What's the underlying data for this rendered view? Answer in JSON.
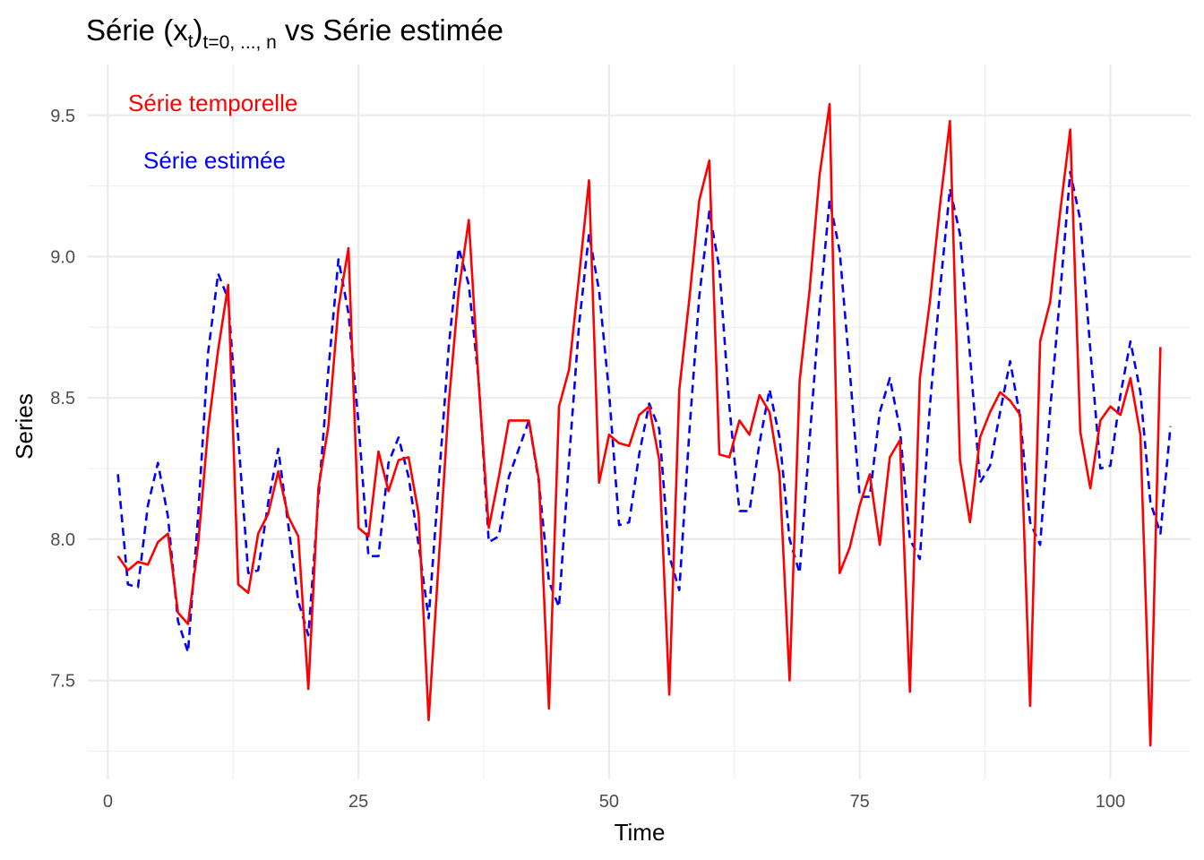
{
  "chart_data": {
    "type": "line",
    "title": {
      "prefix": "Série (x",
      "sub": "t",
      "close": ")",
      "subscript": "t=0, ..., n",
      "suffix": " vs Série estimée"
    },
    "xlabel": "Time",
    "ylabel": "Series",
    "xlim": [
      -2,
      108
    ],
    "ylim": [
      7.15,
      9.68
    ],
    "x_ticks": [
      0,
      25,
      50,
      75,
      100
    ],
    "y_ticks": [
      7.5,
      8.0,
      8.5,
      9.0,
      9.5
    ],
    "y_tick_labels": [
      "7.5",
      "8.0",
      "8.5",
      "9.0",
      "9.5"
    ],
    "grid": true,
    "legend_position": "top-left",
    "series": [
      {
        "name": "Série temporelle",
        "color": "#ff0000",
        "line_style": "solid",
        "x_start": 1,
        "values": [
          7.94,
          7.89,
          7.92,
          7.91,
          7.99,
          8.02,
          7.74,
          7.7,
          7.98,
          8.39,
          8.67,
          8.9,
          7.84,
          7.81,
          8.02,
          8.09,
          8.24,
          8.08,
          8.01,
          7.47,
          8.18,
          8.4,
          8.82,
          9.03,
          8.04,
          8.01,
          8.31,
          8.17,
          8.28,
          8.29,
          8.09,
          7.36,
          7.92,
          8.48,
          8.88,
          9.13,
          8.55,
          8.04,
          8.22,
          8.42,
          8.42,
          8.42,
          8.21,
          7.4,
          8.47,
          8.6,
          8.93,
          9.27,
          8.2,
          8.37,
          8.34,
          8.33,
          8.44,
          8.47,
          8.28,
          7.45,
          8.53,
          8.85,
          9.2,
          9.34,
          8.3,
          8.29,
          8.42,
          8.37,
          8.51,
          8.45,
          8.23,
          7.5,
          8.56,
          8.88,
          9.29,
          9.54,
          7.88,
          7.97,
          8.12,
          8.23,
          7.98,
          8.29,
          8.35,
          7.46,
          8.57,
          8.84,
          9.18,
          9.48,
          8.28,
          8.06,
          8.36,
          8.45,
          8.52,
          8.49,
          8.44,
          7.41,
          8.7,
          8.84,
          9.16,
          9.45,
          8.38,
          8.18,
          8.42,
          8.47,
          8.44,
          8.57,
          8.37,
          7.27,
          8.68
        ]
      },
      {
        "name": "Série estimée",
        "color": "#0000ff",
        "line_style": "dashed",
        "x_start": 1,
        "values": [
          8.23,
          7.84,
          7.83,
          8.12,
          8.27,
          8.08,
          7.71,
          7.6,
          8.08,
          8.66,
          8.94,
          8.85,
          8.36,
          7.88,
          7.89,
          8.13,
          8.32,
          8.05,
          7.78,
          7.66,
          8.14,
          8.6,
          8.99,
          8.8,
          8.41,
          7.94,
          7.94,
          8.27,
          8.36,
          8.22,
          7.98,
          7.72,
          8.2,
          8.68,
          9.03,
          8.9,
          8.56,
          7.99,
          8.01,
          8.22,
          8.32,
          8.42,
          8.2,
          7.85,
          7.76,
          8.28,
          8.76,
          9.08,
          8.88,
          8.52,
          8.05,
          8.06,
          8.3,
          8.48,
          8.39,
          7.94,
          7.82,
          8.38,
          8.86,
          9.16,
          8.96,
          8.47,
          8.1,
          8.1,
          8.34,
          8.53,
          8.36,
          8.0,
          7.88,
          8.35,
          8.82,
          9.2,
          9.02,
          8.6,
          8.15,
          8.15,
          8.45,
          8.57,
          8.39,
          8.0,
          7.93,
          8.47,
          8.88,
          9.24,
          9.08,
          8.65,
          8.2,
          8.26,
          8.45,
          8.63,
          8.43,
          8.06,
          7.98,
          8.46,
          8.87,
          9.3,
          9.13,
          8.67,
          8.25,
          8.26,
          8.51,
          8.7,
          8.52,
          8.13,
          8.02,
          8.4
        ]
      }
    ]
  }
}
